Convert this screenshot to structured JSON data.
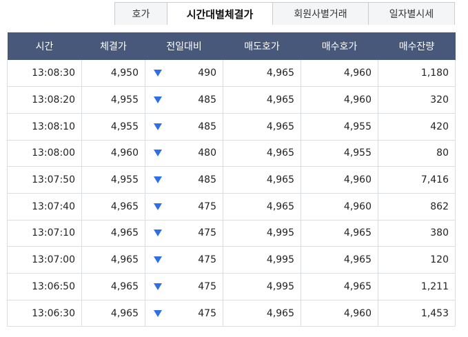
{
  "colors": {
    "header_bg": "#48587a",
    "down_arrow": "#2f6fe6",
    "tab_bg": "#f4f5f7"
  },
  "tabs": [
    {
      "label": "호가",
      "active": false
    },
    {
      "label": "시간대별체결가",
      "active": true
    },
    {
      "label": "회원사별거래",
      "active": false
    },
    {
      "label": "일자별시세",
      "active": false
    }
  ],
  "table": {
    "headers": [
      "시간",
      "체결가",
      "전일대비",
      "매도호가",
      "매수호가",
      "매수잔량"
    ],
    "rows": [
      {
        "time": "13:08:30",
        "price": "4,950",
        "change_dir": "down-icon",
        "change": "490",
        "ask": "4,965",
        "bid": "4,960",
        "bid_qty": "1,180"
      },
      {
        "time": "13:08:20",
        "price": "4,955",
        "change_dir": "down-icon",
        "change": "485",
        "ask": "4,965",
        "bid": "4,960",
        "bid_qty": "320"
      },
      {
        "time": "13:08:10",
        "price": "4,955",
        "change_dir": "down-icon",
        "change": "485",
        "ask": "4,965",
        "bid": "4,955",
        "bid_qty": "420"
      },
      {
        "time": "13:08:00",
        "price": "4,960",
        "change_dir": "down-icon",
        "change": "480",
        "ask": "4,965",
        "bid": "4,955",
        "bid_qty": "80"
      },
      {
        "time": "13:07:50",
        "price": "4,955",
        "change_dir": "down-icon",
        "change": "485",
        "ask": "4,965",
        "bid": "4,960",
        "bid_qty": "7,416"
      },
      {
        "time": "13:07:40",
        "price": "4,965",
        "change_dir": "down-icon",
        "change": "475",
        "ask": "4,965",
        "bid": "4,960",
        "bid_qty": "862"
      },
      {
        "time": "13:07:10",
        "price": "4,965",
        "change_dir": "down-icon",
        "change": "475",
        "ask": "4,995",
        "bid": "4,965",
        "bid_qty": "380"
      },
      {
        "time": "13:07:00",
        "price": "4,965",
        "change_dir": "down-icon",
        "change": "475",
        "ask": "4,995",
        "bid": "4,965",
        "bid_qty": "120"
      },
      {
        "time": "13:06:50",
        "price": "4,965",
        "change_dir": "down-icon",
        "change": "475",
        "ask": "4,995",
        "bid": "4,965",
        "bid_qty": "1,211"
      },
      {
        "time": "13:06:30",
        "price": "4,965",
        "change_dir": "down-icon",
        "change": "475",
        "ask": "4,965",
        "bid": "4,960",
        "bid_qty": "1,453"
      }
    ]
  }
}
